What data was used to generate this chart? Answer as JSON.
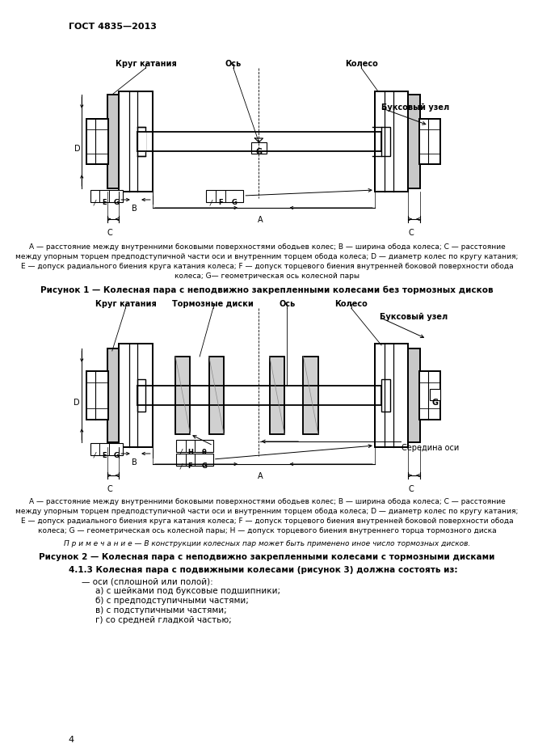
{
  "title_header": "ГОСТ 4835—2013",
  "page_number": "4",
  "fig1_label_krug": "Круг катания",
  "fig1_label_os": "Ось",
  "fig1_label_koleso": "Колесо",
  "fig1_label_buks": "Буксовый узел",
  "fig1_caption_line1": "A — расстояние между внутренними боковыми поверхностями ободьев колес; B — ширина обода колеса; C — расстояние",
  "fig1_caption_line2": "между упорным торцем предподступичной части оси и внутренним торцем обода колеса; D — диаметр колес по кругу катания;",
  "fig1_caption_line3": "E — допуск радиального биения круга катания колеса; F — допуск торцевого биения внутренней боковой поверхности обода",
  "fig1_caption_line4": "колеса; G— геометрическая ось колесной пары",
  "fig1_title": "Рисунок 1 — Колесная пара с неподвижно закрепленными колесами без тормозных дисков",
  "fig2_label_krug": "Круг катания",
  "fig2_label_torm": "Тормозные диски",
  "fig2_label_os": "Ось",
  "fig2_label_koleso": "Колесо",
  "fig2_label_buks": "Буксовый узел",
  "fig2_label_seredina": "Середина оси",
  "fig2_caption_line1": "A — расстояние между внутренними боковыми поверхностями ободьев колес; B — ширина обода колеса; C — расстояние",
  "fig2_caption_line2": "между упорным торцем предподступичной части оси и внутренним торцем обода колеса; D — диаметр колес по кругу катания;",
  "fig2_caption_line3": "E — допуск радиального биения круга катания колеса; F — допуск торцевого биения внутренней боковой поверхности обода",
  "fig2_caption_line4": "колеса; G — геометрическая ось колесной пары; H — допуск торцевого биения внутреннего торца тормозного диска",
  "fig2_note": "П р и м е ч а н и е — В конструкции колесных пар может быть применено иное число тормозных дисков.",
  "fig2_title": "Рисунок 2 — Колесная пара с неподвижно закрепленными колесами с тормозными дисками",
  "sec413_title": "4.1.3 Колесная пара с подвижными колесами (рисунок 3) должна состоять из:",
  "sec413_item0": "— оси (сплошной или полой):",
  "sec413_item1": "а) с шейками под буксовые подшипники;",
  "sec413_item2": "б) с предподступичными частями;",
  "sec413_item3": "в) с подступичными частями;",
  "sec413_item4": "г) со средней гладкой частью;",
  "bg": "#ffffff",
  "fg": "#000000"
}
